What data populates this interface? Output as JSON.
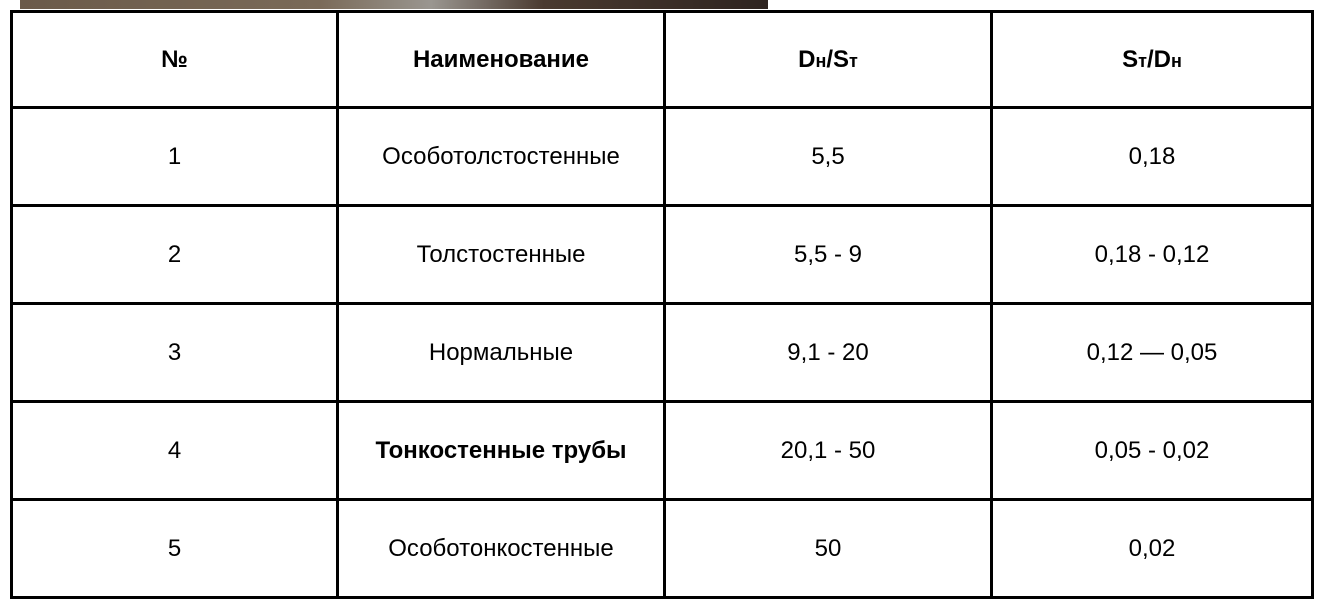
{
  "table": {
    "headers": {
      "num": "№",
      "name": "Наименование",
      "dn_st": {
        "a": "D",
        "b": "н",
        "c": "/S",
        "d": "т"
      },
      "st_dn": {
        "a": "S",
        "b": "т",
        "c": "/D",
        "d": "н"
      }
    },
    "rows": [
      {
        "num": "1",
        "name": "Особотолстостенные",
        "dn_st": "5,5",
        "st_dn": "0,18",
        "bold": false
      },
      {
        "num": "2",
        "name": "Толстостенные",
        "dn_st": "5,5 - 9",
        "st_dn": "0,18 - 0,12",
        "bold": false
      },
      {
        "num": "3",
        "name": "Нормальные",
        "dn_st": "9,1 - 20",
        "st_dn": "0,12 — 0,05",
        "bold": false
      },
      {
        "num": "4",
        "name": "Тонкостенные трубы",
        "dn_st": "20,1 - 50",
        "st_dn": "0,05 - 0,02",
        "bold": true
      },
      {
        "num": "5",
        "name": "Особотонкостенные",
        "dn_st": "50",
        "st_dn": "0,02",
        "bold": false
      }
    ]
  }
}
